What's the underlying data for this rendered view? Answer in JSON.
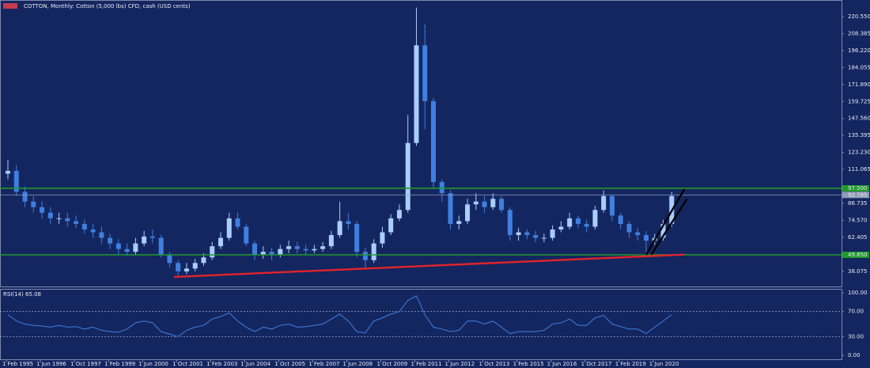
{
  "chart_data": {
    "type": "candlestick",
    "title": "COTTON, Monthly: Cotton (5,000 lbs) CFD, cash (USD cents)",
    "x_labels": [
      "1 Feb 1995",
      "1 Jun 1996",
      "1 Oct 1997",
      "1 Feb 1999",
      "1 Jun 2000",
      "1 Oct 2001",
      "1 Feb 2003",
      "1 Jun 2004",
      "1 Oct 2005",
      "1 Feb 2007",
      "1 Jun 2008",
      "1 Oct 2009",
      "1 Feb 2011",
      "1 Jun 2012",
      "1 Oct 2013",
      "1 Feb 2015",
      "1 Jun 2016",
      "1 Oct 2017",
      "1 Feb 2019",
      "1 Jun 2020"
    ],
    "open": [
      108,
      110,
      95,
      88,
      84,
      80,
      76,
      76,
      74,
      72,
      68,
      66,
      62,
      58,
      54,
      52,
      58,
      63,
      62,
      50,
      44,
      38,
      40,
      44,
      48,
      56,
      62,
      76,
      70,
      58,
      50,
      52,
      50,
      54,
      56,
      54,
      53,
      54,
      56,
      64,
      74,
      72,
      52,
      46,
      58,
      66,
      76,
      82,
      130,
      200,
      160,
      102,
      94,
      72,
      74,
      86,
      88,
      84,
      90,
      82,
      64,
      66,
      64,
      62,
      62,
      68,
      70,
      76,
      72,
      70,
      82,
      92,
      78,
      72,
      66,
      64,
      60,
      62,
      72
    ],
    "high": [
      118,
      114,
      99,
      92,
      88,
      84,
      80,
      80,
      78,
      75,
      72,
      70,
      65,
      61,
      58,
      62,
      67,
      68,
      64,
      52,
      46,
      44,
      47,
      51,
      59,
      66,
      80,
      80,
      72,
      60,
      56,
      55,
      57,
      60,
      59,
      57,
      57,
      59,
      67,
      88,
      80,
      74,
      55,
      61,
      70,
      79,
      86,
      150,
      227,
      215,
      162,
      104,
      96,
      78,
      90,
      94,
      92,
      94,
      92,
      84,
      69,
      68,
      67,
      65,
      71,
      74,
      80,
      78,
      75,
      85,
      96,
      93,
      80,
      74,
      69,
      67,
      65,
      75,
      95
    ],
    "low": [
      104,
      92,
      84,
      80,
      76,
      72,
      72,
      70,
      69,
      65,
      62,
      58,
      54,
      50,
      49,
      50,
      56,
      58,
      48,
      41,
      35,
      36,
      38,
      42,
      46,
      54,
      60,
      68,
      56,
      46,
      47,
      46,
      48,
      51,
      51,
      50,
      51,
      52,
      54,
      62,
      68,
      48,
      40,
      44,
      55,
      64,
      74,
      80,
      128,
      140,
      98,
      88,
      68,
      68,
      72,
      82,
      80,
      82,
      80,
      60,
      60,
      61,
      59,
      59,
      60,
      66,
      68,
      69,
      66,
      68,
      80,
      74,
      68,
      62,
      60,
      49,
      57,
      60,
      70
    ],
    "close": [
      110,
      95,
      88,
      84,
      80,
      76,
      76,
      74,
      72,
      68,
      66,
      62,
      58,
      54,
      52,
      58,
      63,
      62,
      50,
      44,
      38,
      40,
      44,
      48,
      56,
      62,
      76,
      70,
      58,
      50,
      52,
      50,
      54,
      56,
      54,
      53,
      54,
      56,
      64,
      74,
      72,
      52,
      46,
      58,
      66,
      76,
      82,
      130,
      200,
      160,
      102,
      94,
      72,
      74,
      86,
      88,
      84,
      90,
      82,
      64,
      66,
      64,
      62,
      62,
      68,
      70,
      76,
      72,
      70,
      82,
      92,
      78,
      72,
      66,
      64,
      60,
      62,
      72,
      92
    ],
    "up_color": "#a9cdff",
    "down_color": "#3f7fe0",
    "ylim": [
      27.16,
      229.06
    ],
    "yticks": [
      38.075,
      {
        "value": 62.405,
        "label": "62.405"
      },
      {
        "value": 74.57,
        "label": "74.570"
      },
      86.735,
      111.065,
      {
        "value": 123.23,
        "label": "123.230"
      },
      135.395,
      {
        "value": 147.56,
        "label": "147.560"
      },
      159.725,
      {
        "value": 171.89,
        "label": "171.890"
      },
      184.055,
      {
        "value": 196.22,
        "label": "196.220"
      },
      208.385,
      {
        "value": 220.55,
        "label": "220.550"
      }
    ],
    "hlines": [
      {
        "value": 97.5,
        "label": "97.500",
        "color": "#1f9a2a"
      },
      {
        "value": 49.85,
        "label": "49.850",
        "color": "#1f9a2a"
      },
      {
        "value": 92.785,
        "color": "#8f9bb5"
      }
    ],
    "trendlines": [
      {
        "from": [
          19.5,
          34
        ],
        "to": [
          79.5,
          50
        ],
        "color": "#e0242a"
      },
      {
        "from": [
          75,
          50
        ],
        "to": [
          79.5,
          97
        ],
        "color": "#000000"
      },
      {
        "from": [
          75.6,
          50
        ],
        "to": [
          79.8,
          90
        ],
        "color": "#000000"
      }
    ],
    "rsi": {
      "title": "RSI(14) 65.08",
      "color": "#3f7fe0",
      "values": [
        65,
        55,
        50,
        48,
        47,
        45,
        48,
        45,
        46,
        42,
        45,
        40,
        38,
        37,
        42,
        52,
        55,
        52,
        38,
        34,
        30,
        40,
        45,
        48,
        58,
        62,
        68,
        55,
        45,
        38,
        45,
        42,
        48,
        50,
        45,
        46,
        48,
        50,
        58,
        66,
        55,
        38,
        36,
        55,
        60,
        66,
        70,
        88,
        95,
        65,
        45,
        42,
        38,
        40,
        55,
        55,
        50,
        55,
        45,
        35,
        38,
        38,
        38,
        40,
        50,
        52,
        58,
        48,
        48,
        60,
        64,
        50,
        46,
        42,
        42,
        35,
        45,
        55,
        65.08
      ],
      "ylim": [
        0,
        100
      ],
      "yticks": [
        {
          "value": 0,
          "label": "0.00"
        },
        {
          "value": 30,
          "label": "30.00"
        },
        {
          "value": 70,
          "label": "70.00"
        },
        {
          "value": 100,
          "label": "100.00"
        }
      ],
      "dashed_levels": [
        30,
        70
      ]
    }
  }
}
